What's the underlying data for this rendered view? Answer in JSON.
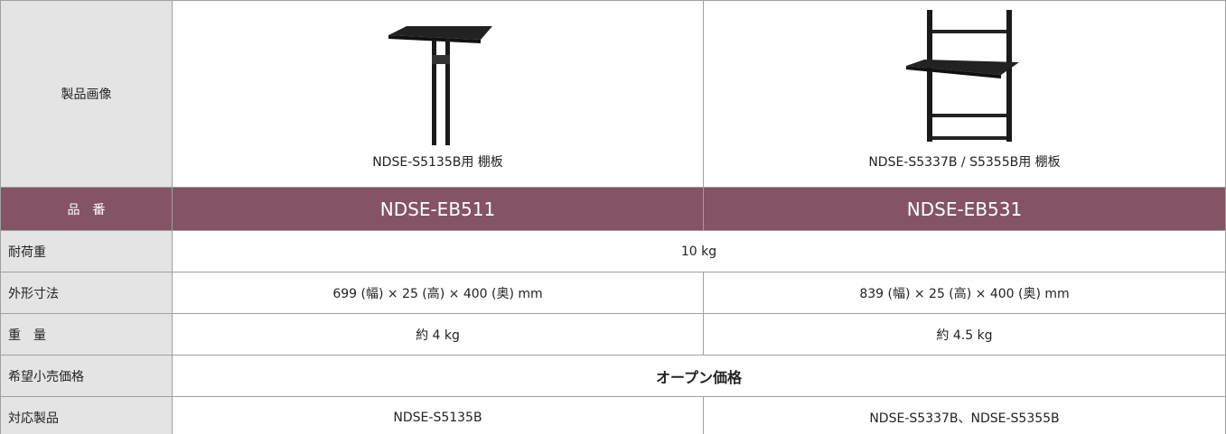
{
  "table": {
    "rows": [
      {
        "label": "製品画像",
        "cells": [
          "NDSE-S5135B用 棚板",
          "NDSE-S5337B / S5355B用 棚板"
        ]
      },
      {
        "label": "品　番",
        "cells": [
          "NDSE-EB511",
          "NDSE-EB531"
        ]
      },
      {
        "label": "耐荷重",
        "cells": [
          "10 kg"
        ]
      },
      {
        "label": "外形寸法",
        "cells": [
          "699 (幅) × 25 (高) × 400 (奥) mm",
          "839 (幅) × 25 (高) × 400 (奥) mm"
        ]
      },
      {
        "label": "重　量",
        "cells": [
          "約 4 kg",
          "約 4.5 kg"
        ]
      },
      {
        "label": "希望小売価格",
        "cells": [
          "オープン価格"
        ]
      },
      {
        "label": "対応製品",
        "cells": [
          "NDSE-S5135B",
          "NDSE-S5337B、NDSE-S5355B"
        ]
      }
    ]
  }
}
